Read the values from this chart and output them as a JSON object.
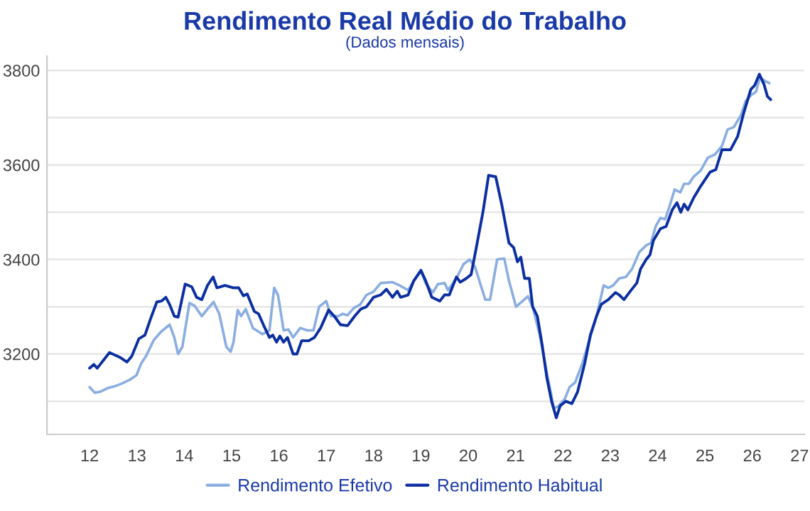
{
  "chart_data": {
    "type": "line",
    "title": "Rendimento Real Médio do Trabalho",
    "subtitle": "(Dados mensais)",
    "xlim": [
      11.1,
      27.1
    ],
    "xticks": [
      12,
      13,
      14,
      15,
      16,
      17,
      18,
      19,
      20,
      21,
      22,
      23,
      24,
      25,
      26,
      27
    ],
    "ylim": [
      3030,
      3830
    ],
    "yticks": [
      {
        "value": 3100,
        "label": null
      },
      3200,
      {
        "value": 3300,
        "label": null
      },
      3400,
      {
        "value": 3500,
        "label": null
      },
      3600,
      {
        "value": 3700,
        "label": null
      },
      3800
    ],
    "grid": "y",
    "legend": "bottom",
    "marker": "none",
    "line_style": "solid",
    "series": [
      {
        "name": "Rendimento Efetivo",
        "color": "#8aaee0",
        "x": [
          12.0,
          12.11,
          12.22,
          12.39,
          12.54,
          12.69,
          12.84,
          12.99,
          13.09,
          13.19,
          13.36,
          13.52,
          13.69,
          13.79,
          13.87,
          13.96,
          14.11,
          14.22,
          14.37,
          14.49,
          14.62,
          14.74,
          14.89,
          14.98,
          15.04,
          15.13,
          15.2,
          15.3,
          15.45,
          15.65,
          15.8,
          15.9,
          15.98,
          16.1,
          16.2,
          16.3,
          16.45,
          16.6,
          16.73,
          16.85,
          17.0,
          17.1,
          17.25,
          17.35,
          17.45,
          17.58,
          17.72,
          17.85,
          18.0,
          18.15,
          18.4,
          18.55,
          18.73,
          18.85,
          19.0,
          19.1,
          19.25,
          19.36,
          19.5,
          19.57,
          19.75,
          19.9,
          20.03,
          20.14,
          20.36,
          20.46,
          20.61,
          20.76,
          20.86,
          21.01,
          21.26,
          21.36,
          21.51,
          21.66,
          21.81,
          21.91,
          22.04,
          22.14,
          22.26,
          22.41,
          22.56,
          22.71,
          22.86,
          22.96,
          23.06,
          23.19,
          23.33,
          23.46,
          23.61,
          23.76,
          23.86,
          23.96,
          24.06,
          24.16,
          24.26,
          24.36,
          24.48,
          24.56,
          24.66,
          24.76,
          24.91,
          25.06,
          25.21,
          25.36,
          25.48,
          25.61,
          25.76,
          25.86,
          25.98,
          26.08,
          26.16,
          26.26,
          26.36
        ],
        "values": [
          3130,
          3118,
          3120,
          3128,
          3132,
          3138,
          3145,
          3155,
          3180,
          3195,
          3230,
          3248,
          3262,
          3235,
          3200,
          3215,
          3308,
          3302,
          3280,
          3295,
          3310,
          3285,
          3215,
          3205,
          3225,
          3293,
          3280,
          3295,
          3255,
          3242,
          3250,
          3340,
          3325,
          3250,
          3252,
          3235,
          3255,
          3250,
          3250,
          3300,
          3312,
          3280,
          3280,
          3285,
          3282,
          3297,
          3305,
          3325,
          3332,
          3350,
          3352,
          3345,
          3335,
          3355,
          3375,
          3350,
          3330,
          3348,
          3350,
          3335,
          3360,
          3390,
          3400,
          3385,
          3315,
          3315,
          3400,
          3402,
          3355,
          3300,
          3322,
          3300,
          3240,
          3160,
          3085,
          3090,
          3105,
          3130,
          3140,
          3180,
          3230,
          3280,
          3345,
          3340,
          3345,
          3360,
          3363,
          3380,
          3415,
          3430,
          3435,
          3470,
          3488,
          3485,
          3515,
          3548,
          3542,
          3560,
          3560,
          3575,
          3588,
          3615,
          3622,
          3640,
          3675,
          3680,
          3705,
          3735,
          3748,
          3755,
          3785,
          3778,
          3773
        ]
      },
      {
        "name": "Rendimento Habitual",
        "color": "#0b2fa0",
        "x": [
          12.0,
          12.09,
          12.16,
          12.24,
          12.42,
          12.64,
          12.79,
          12.89,
          13.04,
          13.17,
          13.29,
          13.42,
          13.52,
          13.61,
          13.69,
          13.79,
          13.87,
          14.02,
          14.16,
          14.26,
          14.37,
          14.49,
          14.61,
          14.69,
          14.86,
          15.04,
          15.15,
          15.25,
          15.33,
          15.48,
          15.57,
          15.68,
          15.8,
          15.87,
          15.95,
          16.02,
          16.1,
          16.18,
          16.3,
          16.38,
          16.48,
          16.63,
          16.75,
          16.88,
          17.05,
          17.17,
          17.3,
          17.45,
          17.6,
          17.73,
          17.85,
          18.0,
          18.15,
          18.27,
          18.4,
          18.5,
          18.57,
          18.73,
          18.85,
          19.0,
          19.1,
          19.23,
          19.4,
          19.5,
          19.6,
          19.75,
          19.83,
          19.96,
          20.06,
          20.16,
          20.31,
          20.43,
          20.58,
          20.71,
          20.86,
          20.96,
          21.04,
          21.11,
          21.19,
          21.29,
          21.36,
          21.46,
          21.56,
          21.66,
          21.76,
          21.86,
          21.94,
          22.06,
          22.19,
          22.31,
          22.46,
          22.58,
          22.71,
          22.81,
          22.96,
          23.11,
          23.19,
          23.29,
          23.44,
          23.56,
          23.64,
          23.76,
          23.84,
          23.91,
          24.06,
          24.18,
          24.31,
          24.41,
          24.49,
          24.56,
          24.64,
          24.76,
          24.91,
          25.01,
          25.11,
          25.23,
          25.36,
          25.54,
          25.69,
          25.82,
          25.97,
          26.05,
          26.15,
          26.25,
          26.32,
          26.39
        ],
        "values": [
          3170,
          3178,
          3170,
          3180,
          3203,
          3193,
          3183,
          3195,
          3232,
          3240,
          3275,
          3310,
          3312,
          3320,
          3305,
          3280,
          3278,
          3348,
          3342,
          3320,
          3315,
          3345,
          3363,
          3340,
          3345,
          3340,
          3340,
          3323,
          3327,
          3290,
          3285,
          3260,
          3235,
          3240,
          3225,
          3238,
          3225,
          3235,
          3200,
          3200,
          3228,
          3228,
          3235,
          3255,
          3293,
          3280,
          3262,
          3260,
          3280,
          3295,
          3300,
          3320,
          3325,
          3337,
          3320,
          3333,
          3320,
          3325,
          3355,
          3377,
          3355,
          3320,
          3312,
          3325,
          3325,
          3363,
          3352,
          3360,
          3368,
          3420,
          3500,
          3578,
          3575,
          3515,
          3435,
          3425,
          3395,
          3405,
          3360,
          3360,
          3300,
          3280,
          3220,
          3150,
          3100,
          3065,
          3090,
          3100,
          3095,
          3120,
          3180,
          3240,
          3280,
          3305,
          3315,
          3330,
          3325,
          3315,
          3335,
          3350,
          3380,
          3400,
          3410,
          3440,
          3465,
          3470,
          3505,
          3520,
          3500,
          3517,
          3505,
          3530,
          3555,
          3570,
          3585,
          3590,
          3632,
          3632,
          3660,
          3710,
          3760,
          3768,
          3792,
          3770,
          3745,
          3738
        ]
      }
    ]
  }
}
